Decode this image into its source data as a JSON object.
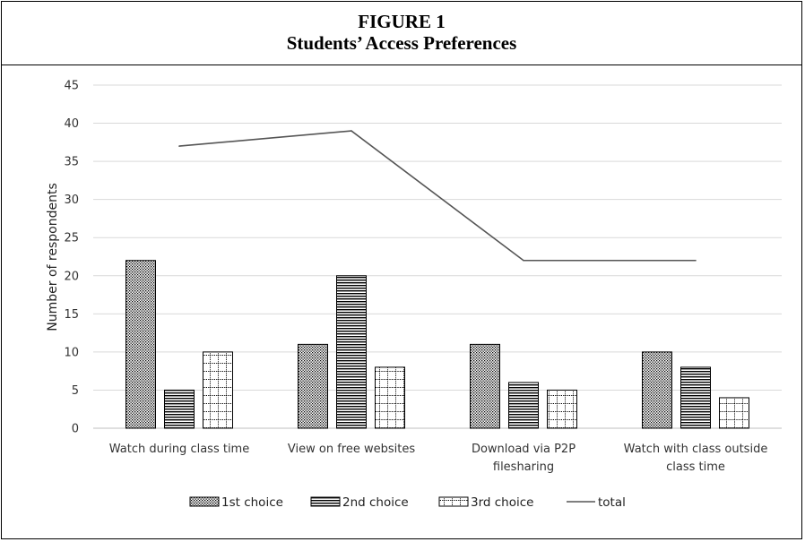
{
  "figure": {
    "label": "FIGURE 1",
    "title": "Students’ Access Preferences"
  },
  "chart_data": {
    "type": "bar",
    "categories": [
      [
        "Watch during class time"
      ],
      [
        "View on free websites"
      ],
      [
        "Download via P2P",
        "filesharing"
      ],
      [
        "Watch with class outside",
        "class time"
      ]
    ],
    "series": [
      {
        "name": "1st choice",
        "type": "bar",
        "pattern": "dots",
        "values": [
          22,
          11,
          11,
          10
        ]
      },
      {
        "name": "2nd choice",
        "type": "bar",
        "pattern": "hlines",
        "values": [
          5,
          20,
          6,
          8
        ]
      },
      {
        "name": "3rd choice",
        "type": "bar",
        "pattern": "grid",
        "values": [
          10,
          8,
          5,
          4
        ]
      },
      {
        "name": "total",
        "type": "line",
        "values": [
          37,
          39,
          22,
          22
        ]
      }
    ],
    "ylabel": "Number of respondents",
    "xlabel": "",
    "ylim": [
      0,
      45
    ],
    "yticks": [
      0,
      5,
      10,
      15,
      20,
      25,
      30,
      35,
      40,
      45
    ],
    "grid": true,
    "legend_position": "bottom",
    "colors": {
      "bar_stroke": "#000000",
      "line": "#555555",
      "grid": "#d9d9d9",
      "axis": "#bfbfbf"
    }
  }
}
